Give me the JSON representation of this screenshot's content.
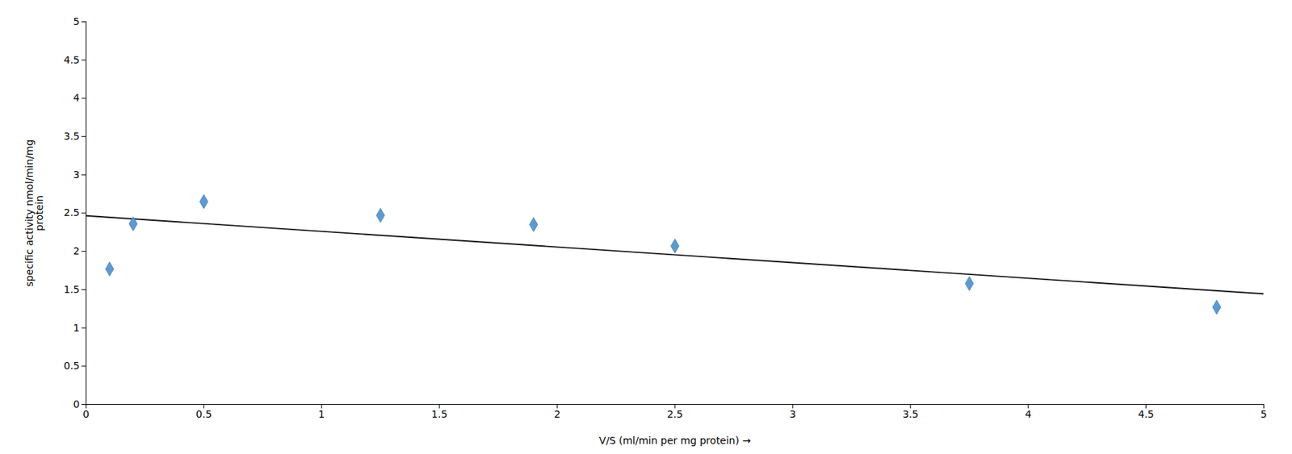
{
  "chart_data": {
    "type": "scatter",
    "xlabel": "V/S (ml/min per mg protein)",
    "ylabel": "specific activity nmol/min/mg\nprotein",
    "xlim": [
      0,
      5
    ],
    "ylim": [
      0,
      5
    ],
    "xticks": [
      0,
      0.5,
      1,
      1.5,
      2,
      2.5,
      3,
      3.5,
      4,
      4.5,
      5
    ],
    "yticks": [
      0,
      0.5,
      1,
      1.5,
      2,
      2.5,
      3,
      3.5,
      4,
      4.5,
      5
    ],
    "grid": false,
    "series": [
      {
        "type": "line",
        "color": "#1a1a1a",
        "x": [
          0.0,
          5.0
        ],
        "values": [
          2.465,
          1.445
        ]
      },
      {
        "type": "scatter",
        "color": "#5b9bd5",
        "marker": "diamond",
        "x": [
          0.1,
          0.2,
          0.5,
          1.25,
          1.9,
          2.5,
          3.75,
          4.8
        ],
        "values": [
          1.77,
          2.36,
          2.65,
          2.47,
          2.35,
          2.07,
          1.58,
          1.27
        ]
      }
    ]
  }
}
